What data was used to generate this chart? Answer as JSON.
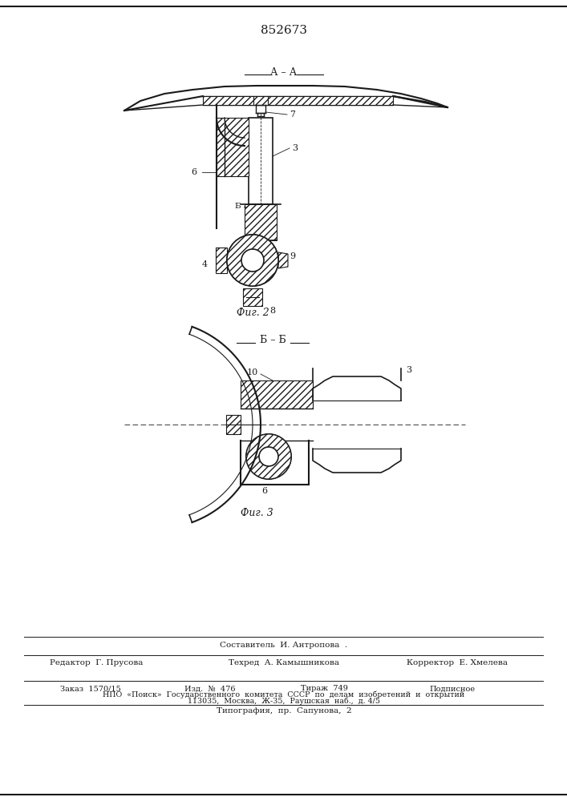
{
  "patent_number": "852673",
  "background_color": "#ffffff",
  "line_color": "#1a1a1a",
  "fig_width": 7.07,
  "fig_height": 10.0,
  "footer_composer": "Составитель  И. Антропова  .",
  "footer_editor": "Редактор  Г. Прусова",
  "footer_techred": "Техред  А. Камышникова",
  "footer_corrector": "Корректор  Е. Хмелева",
  "footer_order": "Заказ  1570/15",
  "footer_izd": "Изд.  №  476",
  "footer_tirazh": "Тираж  749",
  "footer_podpisnoe": "Подписное",
  "footer_npo": "НПО  «Поиск»  Государственного  комитета  СССР  по  делам  изобретений  и  открытий",
  "footer_address": "113035,  Москва,  Ж-35,  Раушская  наб.,  д. 4/5",
  "footer_typography": "Типография,  пр.  Сапунова,  2",
  "label_aa": "А – А",
  "label_fig2": "Фиг. 2",
  "label_bb": "Б – Б",
  "label_fig3": "Фиг. 3"
}
